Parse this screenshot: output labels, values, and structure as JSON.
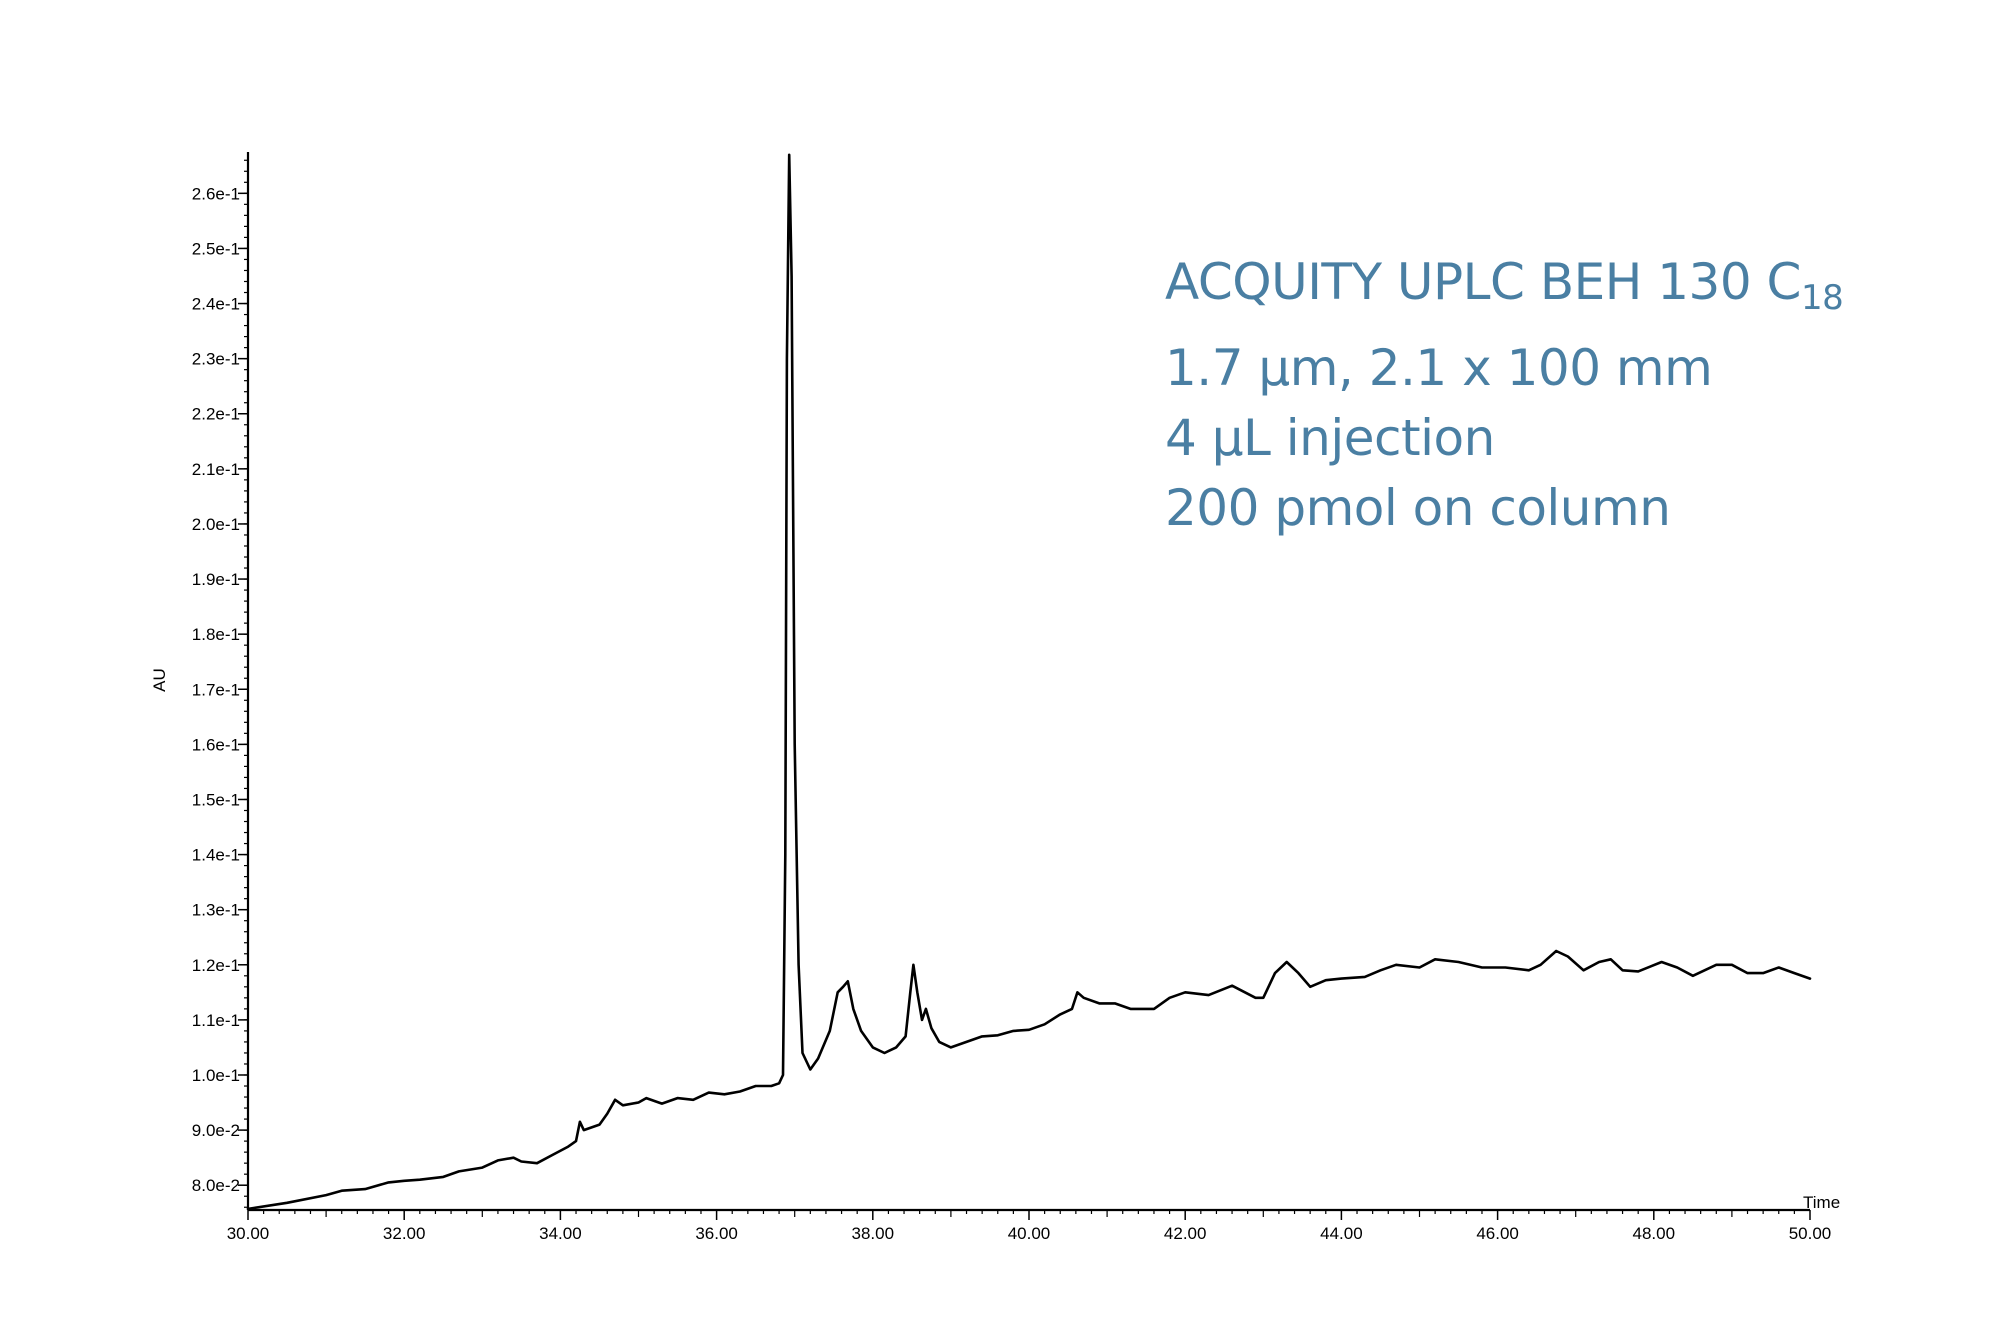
{
  "chart_data": {
    "type": "line",
    "xlabel": "Time",
    "ylabel": "AU",
    "xlim": [
      30,
      50
    ],
    "ylim": [
      0.0755,
      0.2675
    ],
    "x_ticks": [
      "30.00",
      "32.00",
      "34.00",
      "36.00",
      "38.00",
      "40.00",
      "42.00",
      "44.00",
      "46.00",
      "48.00",
      "50.00"
    ],
    "y_ticks": [
      {
        "label": "8.0e-2",
        "value": 0.08
      },
      {
        "label": "9.0e-2",
        "value": 0.09
      },
      {
        "label": "1.0e-1",
        "value": 0.1
      },
      {
        "label": "1.1e-1",
        "value": 0.11
      },
      {
        "label": "1.2e-1",
        "value": 0.12
      },
      {
        "label": "1.3e-1",
        "value": 0.13
      },
      {
        "label": "1.4e-1",
        "value": 0.14
      },
      {
        "label": "1.5e-1",
        "value": 0.15
      },
      {
        "label": "1.6e-1",
        "value": 0.16
      },
      {
        "label": "1.7e-1",
        "value": 0.17
      },
      {
        "label": "1.8e-1",
        "value": 0.18
      },
      {
        "label": "1.9e-1",
        "value": 0.19
      },
      {
        "label": "2.0e-1",
        "value": 0.2
      },
      {
        "label": "2.1e-1",
        "value": 0.21
      },
      {
        "label": "2.2e-1",
        "value": 0.22
      },
      {
        "label": "2.3e-1",
        "value": 0.23
      },
      {
        "label": "2.4e-1",
        "value": 0.24
      },
      {
        "label": "2.5e-1",
        "value": 0.25
      },
      {
        "label": "2.6e-1",
        "value": 0.26
      }
    ],
    "series": [
      {
        "color": "#000000",
        "points": [
          [
            30.0,
            0.0757
          ],
          [
            30.5,
            0.0768
          ],
          [
            31.0,
            0.0782
          ],
          [
            31.2,
            0.079
          ],
          [
            31.5,
            0.0793
          ],
          [
            31.8,
            0.0805
          ],
          [
            32.0,
            0.0808
          ],
          [
            32.2,
            0.081
          ],
          [
            32.5,
            0.0815
          ],
          [
            32.7,
            0.0825
          ],
          [
            33.0,
            0.0832
          ],
          [
            33.2,
            0.0845
          ],
          [
            33.4,
            0.085
          ],
          [
            33.5,
            0.0843
          ],
          [
            33.7,
            0.084
          ],
          [
            33.9,
            0.0855
          ],
          [
            34.1,
            0.087
          ],
          [
            34.2,
            0.088
          ],
          [
            34.25,
            0.0915
          ],
          [
            34.3,
            0.09
          ],
          [
            34.5,
            0.091
          ],
          [
            34.6,
            0.093
          ],
          [
            34.7,
            0.0955
          ],
          [
            34.8,
            0.0945
          ],
          [
            35.0,
            0.095
          ],
          [
            35.1,
            0.0958
          ],
          [
            35.3,
            0.0948
          ],
          [
            35.5,
            0.0958
          ],
          [
            35.7,
            0.0955
          ],
          [
            35.9,
            0.0968
          ],
          [
            36.1,
            0.0965
          ],
          [
            36.3,
            0.097
          ],
          [
            36.5,
            0.098
          ],
          [
            36.7,
            0.098
          ],
          [
            36.8,
            0.0985
          ],
          [
            36.85,
            0.1
          ],
          [
            36.88,
            0.14
          ],
          [
            36.9,
            0.23
          ],
          [
            36.93,
            0.267
          ],
          [
            36.96,
            0.245
          ],
          [
            37.0,
            0.16
          ],
          [
            37.05,
            0.12
          ],
          [
            37.1,
            0.104
          ],
          [
            37.2,
            0.101
          ],
          [
            37.3,
            0.103
          ],
          [
            37.45,
            0.108
          ],
          [
            37.55,
            0.115
          ],
          [
            37.62,
            0.116
          ],
          [
            37.68,
            0.117
          ],
          [
            37.75,
            0.112
          ],
          [
            37.85,
            0.108
          ],
          [
            38.0,
            0.105
          ],
          [
            38.15,
            0.104
          ],
          [
            38.3,
            0.105
          ],
          [
            38.42,
            0.107
          ],
          [
            38.48,
            0.115
          ],
          [
            38.52,
            0.12
          ],
          [
            38.57,
            0.115
          ],
          [
            38.63,
            0.11
          ],
          [
            38.68,
            0.112
          ],
          [
            38.75,
            0.1085
          ],
          [
            38.85,
            0.106
          ],
          [
            39.0,
            0.105
          ],
          [
            39.2,
            0.106
          ],
          [
            39.4,
            0.107
          ],
          [
            39.6,
            0.1072
          ],
          [
            39.8,
            0.108
          ],
          [
            40.0,
            0.1082
          ],
          [
            40.2,
            0.1092
          ],
          [
            40.4,
            0.111
          ],
          [
            40.55,
            0.112
          ],
          [
            40.62,
            0.115
          ],
          [
            40.7,
            0.114
          ],
          [
            40.9,
            0.113
          ],
          [
            41.1,
            0.113
          ],
          [
            41.3,
            0.112
          ],
          [
            41.6,
            0.112
          ],
          [
            41.8,
            0.114
          ],
          [
            42.0,
            0.115
          ],
          [
            42.3,
            0.1145
          ],
          [
            42.6,
            0.1162
          ],
          [
            42.9,
            0.114
          ],
          [
            43.0,
            0.114
          ],
          [
            43.15,
            0.1185
          ],
          [
            43.3,
            0.1205
          ],
          [
            43.45,
            0.1185
          ],
          [
            43.6,
            0.116
          ],
          [
            43.8,
            0.1172
          ],
          [
            44.0,
            0.1175
          ],
          [
            44.3,
            0.1178
          ],
          [
            44.5,
            0.119
          ],
          [
            44.7,
            0.12
          ],
          [
            45.0,
            0.1195
          ],
          [
            45.2,
            0.121
          ],
          [
            45.5,
            0.1205
          ],
          [
            45.8,
            0.1195
          ],
          [
            46.1,
            0.1195
          ],
          [
            46.4,
            0.119
          ],
          [
            46.55,
            0.12
          ],
          [
            46.75,
            0.1225
          ],
          [
            46.9,
            0.1215
          ],
          [
            47.1,
            0.119
          ],
          [
            47.3,
            0.1205
          ],
          [
            47.45,
            0.121
          ],
          [
            47.6,
            0.119
          ],
          [
            47.8,
            0.1188
          ],
          [
            48.1,
            0.1205
          ],
          [
            48.3,
            0.1195
          ],
          [
            48.5,
            0.118
          ],
          [
            48.8,
            0.12
          ],
          [
            49.0,
            0.12
          ],
          [
            49.2,
            0.1185
          ],
          [
            49.4,
            0.1185
          ],
          [
            49.6,
            0.1195
          ],
          [
            49.8,
            0.1185
          ],
          [
            50.0,
            0.1175
          ]
        ]
      }
    ],
    "annotation": {
      "line1": "ACQUITY UPLC BEH 130 C",
      "line1_sub": "18",
      "line2": "1.7 µm, 2.1 x 100 mm",
      "line3": "4 µL injection",
      "line4": "200 pmol on column",
      "color": "#4a7fa3"
    },
    "grid": false,
    "legend": "none"
  }
}
